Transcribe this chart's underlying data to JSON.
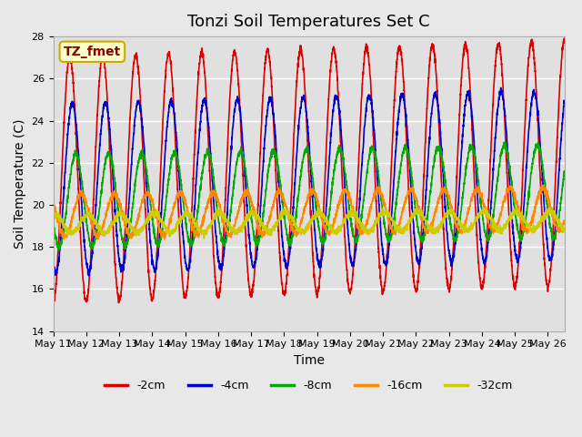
{
  "title": "Tonzi Soil Temperatures Set C",
  "xlabel": "Time",
  "ylabel": "Soil Temperature (C)",
  "ylim": [
    14,
    28
  ],
  "xlim_min": 0,
  "xlim_max": 15.5,
  "x_tick_labels": [
    "May 11",
    "May 12",
    "May 13",
    "May 14",
    "May 15",
    "May 16",
    "May 17",
    "May 18",
    "May 19",
    "May 20",
    "May 21",
    "May 22",
    "May 23",
    "May 24",
    "May 25",
    "May 26"
  ],
  "annotation_text": "TZ_fmet",
  "annotation_box_facecolor": "#ffffcc",
  "annotation_box_edgecolor": "#ccaa00",
  "series": [
    {
      "label": "-2cm",
      "color": "#dd0000",
      "amplitude": 5.8,
      "mean": 21.2,
      "phase": 0.0,
      "period": 1.0,
      "trend": 0.05
    },
    {
      "label": "-4cm",
      "color": "#0000cc",
      "amplitude": 4.0,
      "mean": 20.8,
      "phase": 0.08,
      "period": 1.0,
      "trend": 0.04
    },
    {
      "label": "-8cm",
      "color": "#00aa00",
      "amplitude": 2.2,
      "mean": 20.2,
      "phase": 0.18,
      "period": 1.0,
      "trend": 0.03
    },
    {
      "label": "-16cm",
      "color": "#ff8800",
      "amplitude": 1.0,
      "mean": 19.5,
      "phase": 0.35,
      "period": 1.0,
      "trend": 0.02
    },
    {
      "label": "-32cm",
      "color": "#cccc00",
      "amplitude": 0.45,
      "mean": 19.1,
      "phase": 0.55,
      "period": 1.0,
      "trend": 0.01
    }
  ],
  "background_color": "#e8e8e8",
  "plot_bg_color": "#e0e0e0",
  "grid_color": "#ffffff",
  "linewidth": 1.2,
  "title_fontsize": 13,
  "label_fontsize": 10,
  "tick_fontsize": 8,
  "legend_fontsize": 9
}
